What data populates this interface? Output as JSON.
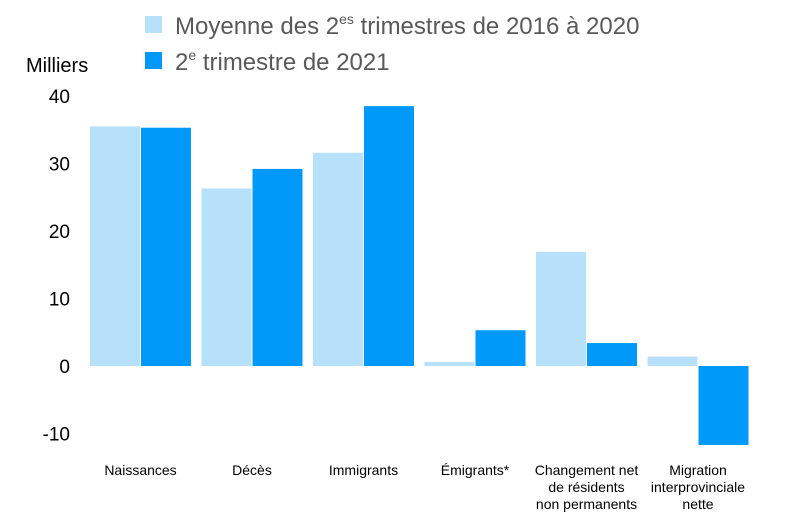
{
  "chart_data": {
    "type": "bar",
    "title": "",
    "xlabel": "",
    "ylabel": "Milliers",
    "ylim": [
      -10,
      40
    ],
    "yticks": [
      40,
      30,
      20,
      10,
      0,
      -10
    ],
    "grid": false,
    "legend_position": "top",
    "categories": [
      "Naissances",
      "Décès",
      "Immigrants",
      "Émigrants*",
      "Changement net de résidents non permanents",
      "Migration interprovinciale nette"
    ],
    "category_lines": [
      [
        "Naissances"
      ],
      [
        "Décès"
      ],
      [
        "Immigrants"
      ],
      [
        "Émigrants*"
      ],
      [
        "Changement net",
        "de résidents",
        "non permanents"
      ],
      [
        "Migration",
        "interprovinciale",
        "nette"
      ]
    ],
    "series": [
      {
        "legend_parts": [
          "Moyenne des 2",
          "es",
          " trimestres de 2016 à 2020"
        ],
        "color": "#b7e1fb",
        "values": [
          35.5,
          26.3,
          31.6,
          0.6,
          16.9,
          1.4
        ]
      },
      {
        "legend_parts": [
          "2",
          "e",
          " trimestre de 2021"
        ],
        "color": "#0098f9",
        "values": [
          35.3,
          29.2,
          38.5,
          5.3,
          3.4,
          -11.7
        ]
      }
    ]
  }
}
